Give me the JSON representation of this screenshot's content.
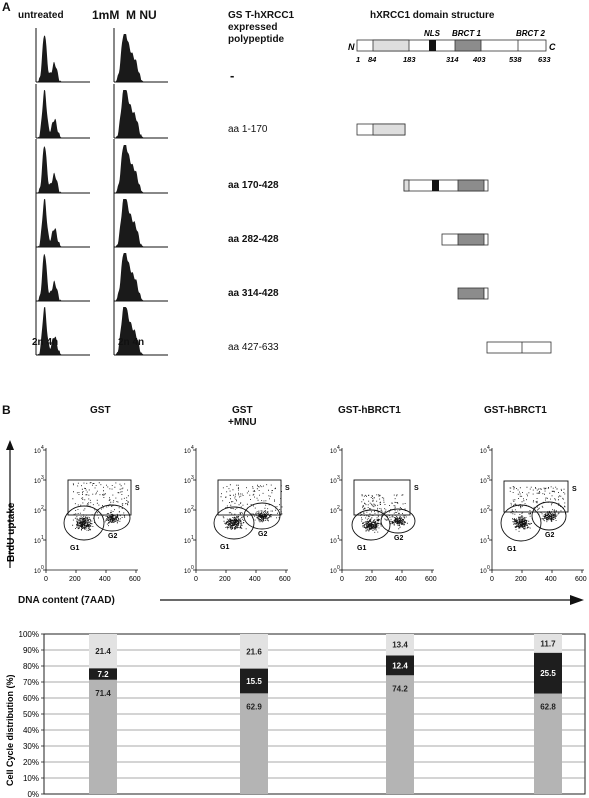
{
  "panelA": {
    "label": "A",
    "col_untreated": "untreated",
    "col_mnu": "1mM  M NU",
    "col_gst_line1": "GS T-hXRCC1",
    "col_gst_line2": "expressed",
    "col_gst_line3": "polypeptide",
    "col_domain": "hXRCC1 domain structure",
    "xaxis_label": "2n 4n",
    "domain": {
      "n_label": "N",
      "c_label": "C",
      "nls": "NLS",
      "brct1": "BRCT 1",
      "brct2": "BRCT 2",
      "positions": [
        "1",
        "84",
        "183",
        "314",
        "403",
        "538",
        "633"
      ]
    },
    "rows": [
      {
        "label": "-",
        "bold": true
      },
      {
        "label": "aa 1-170",
        "bold": false
      },
      {
        "label": "aa 170-428",
        "bold": true
      },
      {
        "label": "aa 282-428",
        "bold": true
      },
      {
        "label": "aa 314-428",
        "bold": true
      },
      {
        "label": "aa 427-633",
        "bold": false
      }
    ]
  },
  "panelB": {
    "label": "B",
    "titles": [
      "GST",
      "GST",
      "GST-hBRCT1",
      "GST-hBRCT1"
    ],
    "subtitle2": "+MNU",
    "ylabel": "BrdU uptake",
    "xlabel": "DNA content (7AAD)",
    "x_ticks": [
      "0",
      "200",
      "400",
      "600"
    ],
    "y_ticks": [
      "10",
      "10",
      "10",
      "10",
      "10"
    ],
    "y_exps": [
      "0",
      "1",
      "2",
      "3",
      "4"
    ],
    "gate_s": "S",
    "gate_g1": "G1",
    "gate_g2": "G2"
  },
  "chart_data": {
    "type": "bar",
    "ylabel": "Cell Cycle distribution (%)",
    "y_ticks": [
      "0%",
      "10%",
      "20%",
      "30%",
      "40%",
      "50%",
      "60%",
      "70%",
      "80%",
      "90%",
      "100%"
    ],
    "ylim": [
      0,
      100
    ],
    "stacked": true,
    "categories": [
      "GST",
      "GST +MNU",
      "GST-hBRCT1",
      "GST-hBRCT1"
    ],
    "series": [
      {
        "values": [
          71.4,
          62.9,
          74.2,
          62.8
        ],
        "labels": [
          "71.4",
          "62.9",
          "74.2",
          "62.8"
        ],
        "color": "#b4b4b4"
      },
      {
        "values": [
          7.2,
          15.5,
          12.4,
          25.5
        ],
        "labels": [
          "7.2",
          "15.5",
          "12.4",
          "25.5"
        ],
        "color": "#1e1e1e"
      },
      {
        "values": [
          21.4,
          21.6,
          13.4,
          11.7
        ],
        "labels": [
          "21.4",
          "21.6",
          "13.4",
          "11.7"
        ],
        "color": "#e2e2e2"
      }
    ]
  }
}
